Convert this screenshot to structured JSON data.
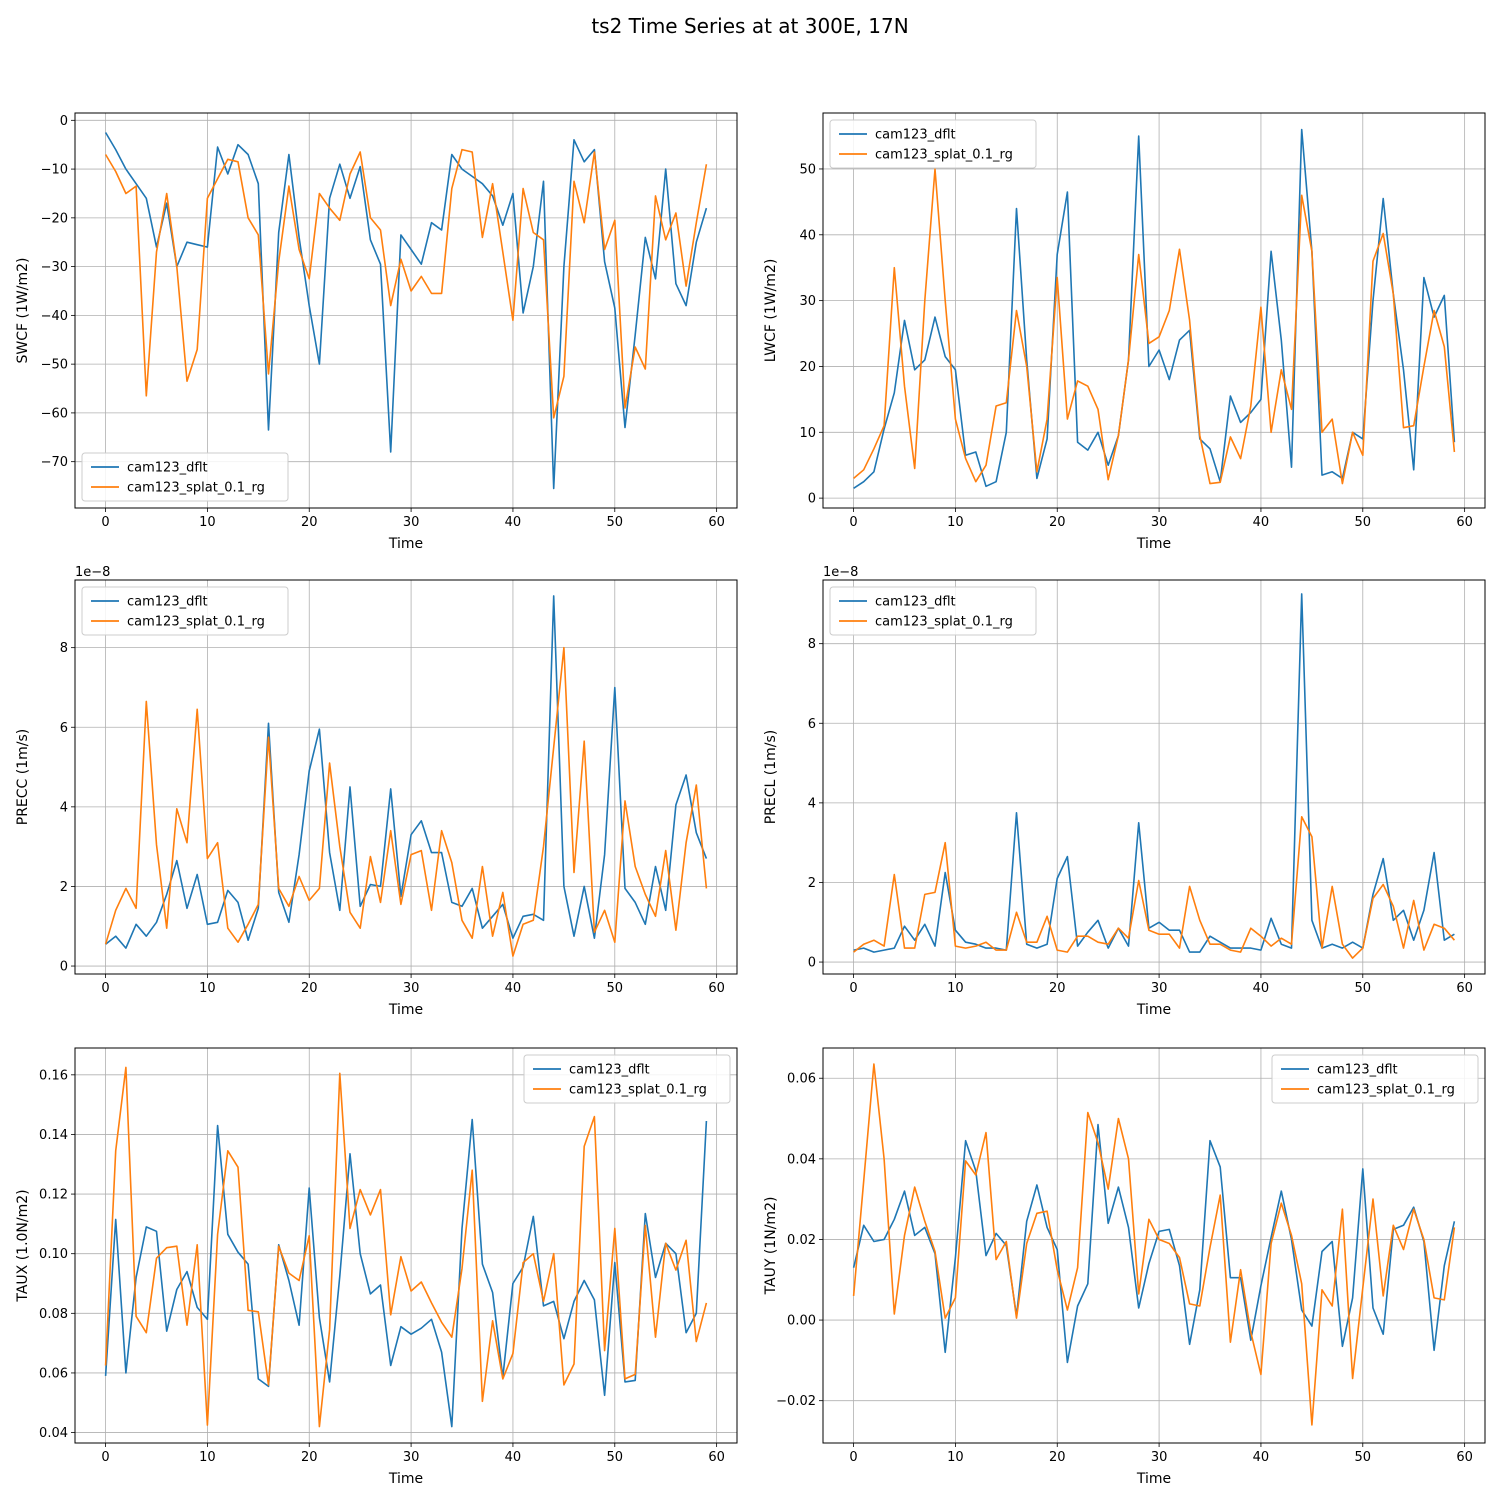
{
  "figure": {
    "title": "ts2 Time Series at at 300E, 17N",
    "colors": {
      "series0": "#1f77b4",
      "series1": "#ff7f0e",
      "grid": "#b0b0b0"
    }
  },
  "chart_data": [
    {
      "id": "swcf",
      "type": "line",
      "title": "",
      "xlabel": "Time",
      "ylabel": "SWCF (1W/m2)",
      "xlim": [
        -3,
        62
      ],
      "ylim": [
        -79.5,
        1.5
      ],
      "xticks": [
        0,
        10,
        20,
        30,
        40,
        50,
        60
      ],
      "xtick_labels": [
        "0",
        "10",
        "20",
        "30",
        "40",
        "50",
        "60"
      ],
      "yticks": [
        -70,
        -60,
        -50,
        -40,
        -30,
        -20,
        -10,
        0
      ],
      "ytick_labels": [
        "−70",
        "−60",
        "−50",
        "−40",
        "−30",
        "−20",
        "−10",
        "0"
      ],
      "offset_label": "",
      "legend_loc": "lower-left",
      "series": [
        {
          "name": "cam123_dflt",
          "color": "#1f77b4",
          "values": [
            -2.5,
            -6,
            -10,
            -13,
            -16,
            -26,
            -17,
            -30,
            -25,
            -25.5,
            -26,
            -5.5,
            -11,
            -5,
            -7,
            -13,
            -63.5,
            -23,
            -7,
            -24,
            -38,
            -50,
            -16,
            -9,
            -16,
            -9.5,
            -24.5,
            -29.5,
            -68,
            -23.5,
            -26.5,
            -29.5,
            -21,
            -22.5,
            -7,
            -10,
            -11.5,
            -13,
            -15.5,
            -21.5,
            -15,
            -39.5,
            -30,
            -12.5,
            -75.5,
            -30,
            -4,
            -8.5,
            -6,
            -29,
            -38.5,
            -63,
            -44,
            -24,
            -32.5,
            -10,
            -33.5,
            -38,
            -25,
            -18
          ]
        },
        {
          "name": "cam123_splat_0.1_rg",
          "color": "#ff7f0e",
          "values": [
            -7,
            -10.5,
            -15,
            -13.5,
            -56.5,
            -27,
            -15,
            -30,
            -53.5,
            -47,
            -16,
            -12,
            -8,
            -8.5,
            -20,
            -23.5,
            -52,
            -29,
            -13.5,
            -26.5,
            -32.5,
            -15,
            -18,
            -20.5,
            -11,
            -6.5,
            -20,
            -22.5,
            -38,
            -28.5,
            -35,
            -32,
            -35.5,
            -35.5,
            -14,
            -6,
            -6.5,
            -24,
            -13,
            -27,
            -41,
            -14,
            -23,
            -24.5,
            -61,
            -52.5,
            -12.5,
            -21,
            -6.5,
            -26.5,
            -20.5,
            -59,
            -46.5,
            -51,
            -15.5,
            -24.5,
            -19,
            -34,
            -21,
            -9
          ]
        }
      ]
    },
    {
      "id": "lwcf",
      "type": "line",
      "title": "",
      "xlabel": "Time",
      "ylabel": "LWCF (1W/m2)",
      "xlim": [
        -3,
        62
      ],
      "ylim": [
        -1.5,
        58.5
      ],
      "xticks": [
        0,
        10,
        20,
        30,
        40,
        50,
        60
      ],
      "xtick_labels": [
        "0",
        "10",
        "20",
        "30",
        "40",
        "50",
        "60"
      ],
      "yticks": [
        0,
        10,
        20,
        30,
        40,
        50
      ],
      "ytick_labels": [
        "0",
        "10",
        "20",
        "30",
        "40",
        "50"
      ],
      "offset_label": "",
      "legend_loc": "upper-left",
      "series": [
        {
          "name": "cam123_dflt",
          "color": "#1f77b4",
          "values": [
            1.5,
            2.5,
            4,
            10.5,
            16,
            27,
            19.5,
            21,
            27.5,
            21.5,
            19.5,
            6.5,
            7,
            1.8,
            2.5,
            10,
            44,
            21,
            3,
            9,
            37,
            46.5,
            8.5,
            7.3,
            10,
            5,
            9.5,
            21,
            55,
            20,
            22.5,
            18,
            24,
            25.5,
            9,
            7.5,
            2.5,
            15.5,
            11.5,
            13,
            15,
            37.5,
            24,
            4.7,
            56,
            37.5,
            3.5,
            4,
            3,
            10,
            9,
            30,
            45.5,
            31,
            19.5,
            4.3,
            33.5,
            27.5,
            30.8,
            8.5
          ]
        },
        {
          "name": "cam123_splat_0.1_rg",
          "color": "#ff7f0e",
          "values": [
            3,
            4.3,
            7.5,
            11,
            35,
            17,
            4.5,
            30,
            50,
            30,
            12,
            6,
            2.5,
            5,
            14,
            14.5,
            28.5,
            20,
            4,
            12,
            33.5,
            12,
            17.8,
            17,
            13.5,
            2.8,
            9.5,
            21,
            37,
            23.5,
            24.5,
            28.5,
            37.8,
            27,
            9.5,
            2.2,
            2.4,
            9.3,
            6,
            14,
            29,
            10,
            19.5,
            13.5,
            46,
            37.5,
            10,
            12,
            2.2,
            10,
            6.5,
            36,
            40.2,
            31,
            10.7,
            11,
            20,
            28.5,
            23,
            7
          ]
        }
      ]
    },
    {
      "id": "precc",
      "type": "line",
      "title": "",
      "xlabel": "Time",
      "ylabel": "PRECC (1m/s)",
      "xlim": [
        -3,
        62
      ],
      "ylim": [
        -0.2,
        9.7
      ],
      "xticks": [
        0,
        10,
        20,
        30,
        40,
        50,
        60
      ],
      "xtick_labels": [
        "0",
        "10",
        "20",
        "30",
        "40",
        "50",
        "60"
      ],
      "yticks": [
        0,
        2,
        4,
        6,
        8
      ],
      "ytick_labels": [
        "0",
        "2",
        "4",
        "6",
        "8"
      ],
      "offset_label": "1e−8",
      "legend_loc": "upper-left",
      "series": [
        {
          "name": "cam123_dflt",
          "color": "#1f77b4",
          "values": [
            0.55,
            0.75,
            0.45,
            1.05,
            0.75,
            1.1,
            1.8,
            2.65,
            1.45,
            2.3,
            1.05,
            1.1,
            1.9,
            1.6,
            0.65,
            1.45,
            6.1,
            1.85,
            1.1,
            2.8,
            4.9,
            5.95,
            2.85,
            1.4,
            4.5,
            1.5,
            2.05,
            2.0,
            4.45,
            1.75,
            3.3,
            3.65,
            2.85,
            2.85,
            1.6,
            1.5,
            1.95,
            0.95,
            1.25,
            1.55,
            0.7,
            1.25,
            1.3,
            1.15,
            9.3,
            2.0,
            0.75,
            2.0,
            0.7,
            2.8,
            7.0,
            1.95,
            1.6,
            1.05,
            2.5,
            1.4,
            4.05,
            4.8,
            3.35,
            2.7
          ]
        },
        {
          "name": "cam123_splat_0.1_rg",
          "color": "#ff7f0e",
          "values": [
            0.55,
            1.4,
            1.95,
            1.45,
            6.65,
            3.05,
            0.95,
            3.95,
            3.1,
            6.45,
            2.7,
            3.1,
            0.95,
            0.6,
            1.05,
            1.55,
            5.75,
            1.95,
            1.5,
            2.25,
            1.65,
            1.95,
            5.1,
            3.0,
            1.35,
            0.95,
            2.75,
            1.6,
            3.4,
            1.55,
            2.8,
            2.9,
            1.4,
            3.4,
            2.6,
            1.15,
            0.7,
            2.5,
            0.75,
            1.85,
            0.25,
            1.05,
            1.15,
            3.0,
            5.5,
            8.0,
            2.35,
            5.65,
            0.85,
            1.4,
            0.6,
            4.15,
            2.5,
            1.8,
            1.25,
            2.9,
            0.9,
            3.1,
            4.55,
            1.95
          ]
        }
      ]
    },
    {
      "id": "precl",
      "type": "line",
      "title": "",
      "xlabel": "Time",
      "ylabel": "PRECL (1m/s)",
      "xlim": [
        -3,
        62
      ],
      "ylim": [
        -0.3,
        9.6
      ],
      "xticks": [
        0,
        10,
        20,
        30,
        40,
        50,
        60
      ],
      "xtick_labels": [
        "0",
        "10",
        "20",
        "30",
        "40",
        "50",
        "60"
      ],
      "yticks": [
        0,
        2,
        4,
        6,
        8
      ],
      "ytick_labels": [
        "0",
        "2",
        "4",
        "6",
        "8"
      ],
      "offset_label": "1e−8",
      "legend_loc": "upper-left",
      "series": [
        {
          "name": "cam123_dflt",
          "color": "#1f77b4",
          "values": [
            0.3,
            0.35,
            0.25,
            0.3,
            0.35,
            0.9,
            0.55,
            0.95,
            0.4,
            2.25,
            0.8,
            0.5,
            0.45,
            0.35,
            0.35,
            0.3,
            3.75,
            0.45,
            0.35,
            0.45,
            2.1,
            2.65,
            0.4,
            0.75,
            1.05,
            0.35,
            0.85,
            0.4,
            3.5,
            0.85,
            1.0,
            0.8,
            0.8,
            0.25,
            0.25,
            0.65,
            0.5,
            0.35,
            0.35,
            0.35,
            0.3,
            1.1,
            0.45,
            0.35,
            9.25,
            1.05,
            0.35,
            0.45,
            0.35,
            0.5,
            0.35,
            1.7,
            2.6,
            1.05,
            1.3,
            0.55,
            1.3,
            2.75,
            0.55,
            0.7
          ]
        },
        {
          "name": "cam123_splat_0.1_rg",
          "color": "#ff7f0e",
          "values": [
            0.25,
            0.45,
            0.55,
            0.4,
            2.2,
            0.35,
            0.35,
            1.7,
            1.75,
            3.0,
            0.4,
            0.35,
            0.4,
            0.5,
            0.3,
            0.3,
            1.25,
            0.5,
            0.5,
            1.15,
            0.3,
            0.25,
            0.65,
            0.65,
            0.5,
            0.45,
            0.85,
            0.6,
            2.05,
            0.8,
            0.7,
            0.7,
            0.35,
            1.9,
            1.05,
            0.45,
            0.45,
            0.3,
            0.25,
            0.85,
            0.65,
            0.4,
            0.6,
            0.45,
            3.65,
            3.15,
            0.35,
            1.9,
            0.45,
            0.1,
            0.35,
            1.6,
            1.95,
            1.4,
            0.35,
            1.55,
            0.3,
            0.95,
            0.85,
            0.55
          ]
        }
      ]
    },
    {
      "id": "taux",
      "type": "line",
      "title": "",
      "xlabel": "Time",
      "ylabel": "TAUX (1.0N/m2)",
      "xlim": [
        -3,
        62
      ],
      "ylim": [
        0.0365,
        0.169
      ],
      "xticks": [
        0,
        10,
        20,
        30,
        40,
        50,
        60
      ],
      "xtick_labels": [
        "0",
        "10",
        "20",
        "30",
        "40",
        "50",
        "60"
      ],
      "yticks": [
        0.04,
        0.06,
        0.08,
        0.1,
        0.12,
        0.14,
        0.16
      ],
      "ytick_labels": [
        "0.04",
        "0.06",
        "0.08",
        "0.10",
        "0.12",
        "0.14",
        "0.16"
      ],
      "offset_label": "",
      "legend_loc": "upper-right",
      "series": [
        {
          "name": "cam123_dflt",
          "color": "#1f77b4",
          "values": [
            0.059,
            0.1115,
            0.06,
            0.092,
            0.109,
            0.1075,
            0.074,
            0.088,
            0.094,
            0.082,
            0.078,
            0.143,
            0.1065,
            0.1005,
            0.0965,
            0.058,
            0.0555,
            0.103,
            0.091,
            0.076,
            0.122,
            0.0785,
            0.057,
            0.0925,
            0.1335,
            0.1,
            0.0865,
            0.0895,
            0.0625,
            0.0755,
            0.073,
            0.075,
            0.078,
            0.067,
            0.042,
            0.1085,
            0.145,
            0.0965,
            0.087,
            0.0585,
            0.09,
            0.0955,
            0.1125,
            0.0825,
            0.084,
            0.0715,
            0.084,
            0.091,
            0.0845,
            0.0525,
            0.097,
            0.057,
            0.0575,
            0.1135,
            0.092,
            0.1035,
            0.1,
            0.0735,
            0.08,
            0.1445
          ]
        },
        {
          "name": "cam123_splat_0.1_rg",
          "color": "#ff7f0e",
          "values": [
            0.0625,
            0.1345,
            0.1625,
            0.079,
            0.0735,
            0.0985,
            0.102,
            0.1025,
            0.076,
            0.103,
            0.0425,
            0.1065,
            0.1345,
            0.129,
            0.081,
            0.0805,
            0.056,
            0.1025,
            0.0935,
            0.091,
            0.106,
            0.042,
            0.0745,
            0.1605,
            0.1085,
            0.1215,
            0.113,
            0.1215,
            0.0795,
            0.099,
            0.0875,
            0.0905,
            0.0835,
            0.077,
            0.072,
            0.095,
            0.128,
            0.0505,
            0.0775,
            0.058,
            0.0665,
            0.097,
            0.1,
            0.084,
            0.1,
            0.056,
            0.063,
            0.136,
            0.146,
            0.0675,
            0.1085,
            0.058,
            0.0595,
            0.1095,
            0.072,
            0.1035,
            0.0945,
            0.1045,
            0.0705,
            0.0835
          ]
        }
      ]
    },
    {
      "id": "tauy",
      "type": "line",
      "title": "",
      "xlabel": "Time",
      "ylabel": "TAUY (1N/m2)",
      "xlim": [
        -3,
        62
      ],
      "ylim": [
        -0.0305,
        0.0675
      ],
      "xticks": [
        0,
        10,
        20,
        30,
        40,
        50,
        60
      ],
      "xtick_labels": [
        "0",
        "10",
        "20",
        "30",
        "40",
        "50",
        "60"
      ],
      "yticks": [
        -0.02,
        0.0,
        0.02,
        0.04,
        0.06
      ],
      "ytick_labels": [
        "−0.02",
        "0.00",
        "0.02",
        "0.04",
        "0.06"
      ],
      "offset_label": "",
      "legend_loc": "upper-right",
      "series": [
        {
          "name": "cam123_dflt",
          "color": "#1f77b4",
          "values": [
            0.013,
            0.0235,
            0.0195,
            0.02,
            0.025,
            0.032,
            0.021,
            0.023,
            0.0165,
            -0.008,
            0.0155,
            0.0445,
            0.037,
            0.016,
            0.0215,
            0.0185,
            0.001,
            0.0245,
            0.0335,
            0.023,
            0.0175,
            -0.0105,
            0.0035,
            0.009,
            0.0485,
            0.024,
            0.033,
            0.023,
            0.003,
            0.014,
            0.022,
            0.0225,
            0.0135,
            -0.006,
            0.0075,
            0.0445,
            0.038,
            0.0105,
            0.0105,
            -0.005,
            0.0085,
            0.0205,
            0.032,
            0.02,
            0.0025,
            -0.0015,
            0.017,
            0.0195,
            -0.0065,
            0.0055,
            0.0375,
            0.003,
            -0.0035,
            0.0225,
            0.0235,
            0.028,
            0.0195,
            -0.0075,
            0.0135,
            0.0245
          ]
        },
        {
          "name": "cam123_splat_0.1_rg",
          "color": "#ff7f0e",
          "values": [
            0.006,
            0.0345,
            0.0635,
            0.04,
            0.0015,
            0.021,
            0.033,
            0.0245,
            0.017,
            0.0005,
            0.0055,
            0.0395,
            0.036,
            0.0465,
            0.015,
            0.0195,
            0.0005,
            0.019,
            0.0265,
            0.027,
            0.0125,
            0.0025,
            0.013,
            0.0515,
            0.044,
            0.0325,
            0.05,
            0.04,
            0.0065,
            0.025,
            0.02,
            0.019,
            0.0155,
            0.004,
            0.0035,
            0.018,
            0.031,
            -0.0055,
            0.0125,
            -0.003,
            -0.0135,
            0.019,
            0.029,
            0.021,
            0.009,
            -0.026,
            0.0075,
            0.0035,
            0.0275,
            -0.0145,
            0.008,
            0.03,
            0.006,
            0.0235,
            0.0175,
            0.0275,
            0.02,
            0.0055,
            0.005,
            0.023
          ]
        }
      ]
    }
  ]
}
